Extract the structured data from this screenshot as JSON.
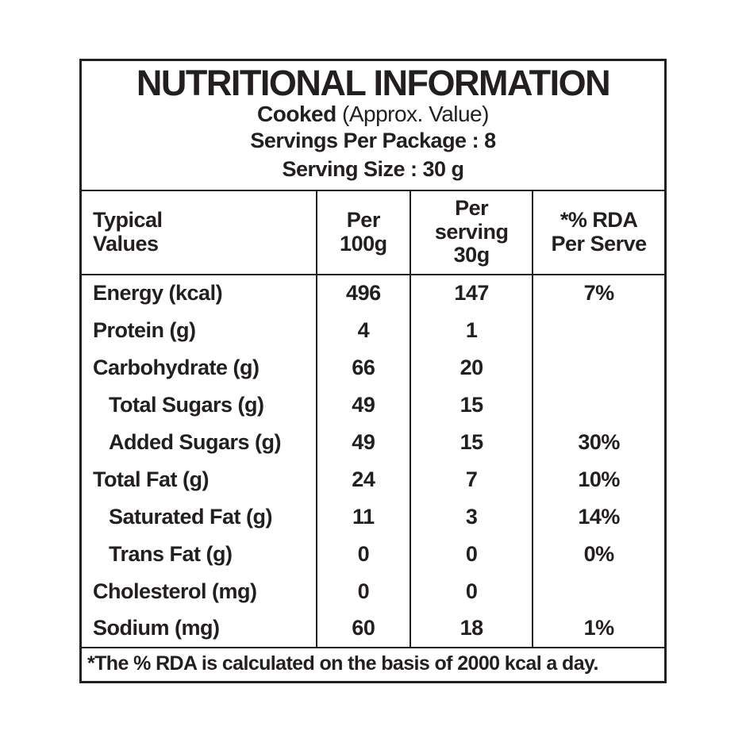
{
  "colors": {
    "ink": "#231f20",
    "background": "#ffffff"
  },
  "header": {
    "title": "NUTRITIONAL INFORMATION",
    "subtitle_bold": "Cooked",
    "subtitle_note": " (Approx. Value)",
    "servings_line": "Servings Per Package : 8",
    "serving_size_line": "Serving Size : 30 g"
  },
  "table": {
    "columns": [
      "Typical\nValues",
      "Per\n100g",
      "Per\nserving\n30g",
      "*% RDA\nPer Serve"
    ],
    "rows": [
      {
        "label": "Energy (kcal)",
        "per_100g": "496",
        "per_serving": "147",
        "rda": "7%"
      },
      {
        "label": "Protein (g)",
        "per_100g": "4",
        "per_serving": "1",
        "rda": ""
      },
      {
        "label": "Carbohydrate (g)",
        "per_100g": "66",
        "per_serving": "20",
        "rda": ""
      },
      {
        "label": "Total Sugars (g)",
        "per_100g": "49",
        "per_serving": "15",
        "rda": ""
      },
      {
        "label": "Added Sugars (g)",
        "per_100g": "49",
        "per_serving": "15",
        "rda": "30%"
      },
      {
        "label": "Total Fat (g)",
        "per_100g": "24",
        "per_serving": "7",
        "rda": "10%"
      },
      {
        "label": "Saturated Fat (g)",
        "per_100g": "11",
        "per_serving": "3",
        "rda": "14%"
      },
      {
        "label": "Trans Fat (g)",
        "per_100g": "0",
        "per_serving": "0",
        "rda": "0%"
      },
      {
        "label": "Cholesterol (mg)",
        "per_100g": "0",
        "per_serving": "0",
        "rda": ""
      },
      {
        "label": "Sodium (mg)",
        "per_100g": "60",
        "per_serving": "18",
        "rda": "1%"
      }
    ]
  },
  "footnote": "*The % RDA is calculated on the basis of 2000 kcal a day."
}
